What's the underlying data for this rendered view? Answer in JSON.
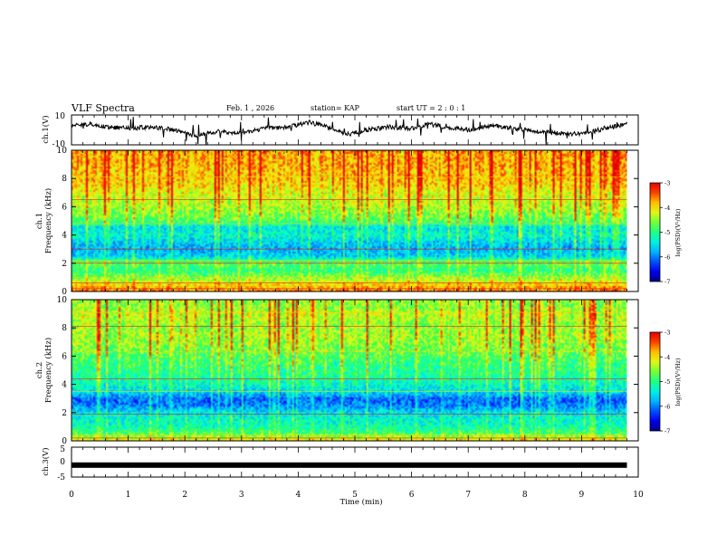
{
  "header": {
    "title": "VLF Spectra",
    "date": "Feb. 1 , 2026",
    "station": "station= KAP",
    "start_ut": "start  UT =   2 : 0 : 1"
  },
  "chart_data": [
    {
      "type": "line",
      "id": "ch1-waveform",
      "ylabel": "ch.1(V)",
      "ylim": [
        -10,
        10
      ],
      "ytick_labels": [
        "10",
        "-10"
      ],
      "xlim": [
        0,
        10
      ],
      "data_extent_min": 9.8,
      "envelope": {
        "x": [
          0,
          0.3,
          0.6,
          1.0,
          1.4,
          1.8,
          2.2,
          2.6,
          3.0,
          3.4,
          3.8,
          4.2,
          4.6,
          4.9,
          5.2,
          5.6,
          6.0,
          6.3,
          6.6,
          7.0,
          7.4,
          7.8,
          8.2,
          8.6,
          9.0,
          9.4,
          9.8
        ],
        "y": [
          3,
          4,
          2,
          1,
          2,
          0,
          -4,
          -1,
          -2,
          1,
          2,
          5,
          1,
          -3,
          0,
          2,
          1,
          4,
          2,
          0,
          3,
          1,
          -1,
          -2,
          -3,
          1,
          4
        ]
      }
    },
    {
      "type": "heatmap",
      "id": "ch1-spectrogram",
      "ylabel": "Frequency  (kHz)",
      "ylabel2": "ch.1",
      "xlim": [
        0,
        10
      ],
      "ylim": [
        0,
        10
      ],
      "yticks": [
        "0",
        "2",
        "4",
        "6",
        "8",
        "10"
      ],
      "data_extent_min": 9.8,
      "colorbar": {
        "label": "log(PSD)(V²/Hz)",
        "range": [
          -7,
          -3
        ],
        "ticks": [
          "-3",
          "-4",
          "-5",
          "-6",
          "-7"
        ]
      },
      "mean_log_psd_by_band": {
        "freq_khz": [
          0,
          0.5,
          1,
          1.5,
          2,
          2.5,
          3,
          3.5,
          4,
          4.5,
          5,
          5.5,
          6,
          6.5,
          7,
          7.5,
          8,
          8.5,
          9,
          9.5,
          10
        ],
        "log_psd": [
          -3.6,
          -4.0,
          -4.6,
          -5.0,
          -4.7,
          -5.6,
          -5.8,
          -5.6,
          -5.3,
          -5.5,
          -4.8,
          -4.6,
          -4.4,
          -4.3,
          -4.2,
          -4.0,
          -3.9,
          -3.9,
          -3.8,
          -3.8,
          -3.8
        ]
      },
      "tones_khz": [
        0.2,
        0.4,
        0.6,
        1.0,
        2.0,
        2.2,
        3.0,
        4.8,
        6.5,
        8.1
      ]
    },
    {
      "type": "heatmap",
      "id": "ch2-spectrogram",
      "ylabel": "Frequency  (kHz)",
      "ylabel2": "ch.2",
      "xlim": [
        0,
        10
      ],
      "ylim": [
        0,
        10
      ],
      "yticks": [
        "0",
        "2",
        "4",
        "6",
        "8",
        "10"
      ],
      "data_extent_min": 9.8,
      "colorbar": {
        "label": "log(PSD)(V²/Hz)",
        "range": [
          -7,
          -3
        ],
        "ticks": [
          "-3",
          "-4",
          "-5",
          "-6",
          "-7"
        ]
      },
      "mean_log_psd_by_band": {
        "freq_khz": [
          0,
          0.5,
          1,
          1.5,
          2,
          2.5,
          3,
          3.5,
          4,
          4.5,
          5,
          5.5,
          6,
          6.5,
          7,
          7.5,
          8,
          8.5,
          9,
          9.5,
          10
        ],
        "log_psd": [
          -4.0,
          -4.8,
          -5.2,
          -5.3,
          -5.5,
          -6.0,
          -6.1,
          -5.5,
          -5.3,
          -5.1,
          -5.0,
          -4.9,
          -4.8,
          -4.6,
          -4.5,
          -4.4,
          -4.5,
          -4.4,
          -4.3,
          -4.5,
          -4.5
        ]
      },
      "tones_khz": [
        0.2,
        0.4,
        1.9,
        3.5,
        4.4,
        6.3,
        8.1,
        9.1
      ]
    },
    {
      "type": "line",
      "id": "ch3-waveform",
      "ylabel": "ch.3(V)",
      "ylim": [
        -5,
        5
      ],
      "ytick_labels": [
        "5",
        "0",
        "-5"
      ],
      "xlim": [
        0,
        10
      ],
      "data_extent_min": 9.8,
      "level": {
        "x": [
          0,
          9.8
        ],
        "y": [
          -1,
          -1
        ]
      }
    }
  ],
  "xaxis": {
    "label": "Time  (min)",
    "ticks": [
      "0",
      "1",
      "2",
      "3",
      "4",
      "5",
      "6",
      "7",
      "8",
      "9",
      "10"
    ]
  }
}
